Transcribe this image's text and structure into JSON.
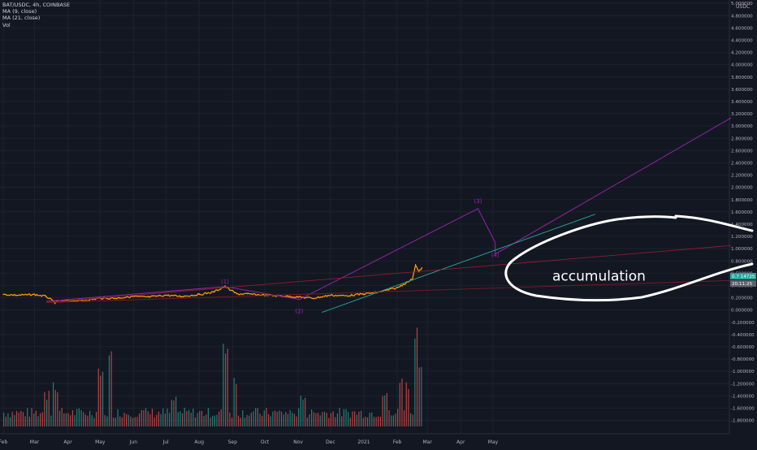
{
  "legend": {
    "symbol_line": "BAT/USDC, 4h, COINBASE",
    "ma9": "MA (9, close)",
    "ma21": "MA (21, close)",
    "vol": "Vol"
  },
  "currency": "USDC",
  "price_tags": {
    "last": "0.7 14725",
    "ma": "20:11:25",
    "label_color_last": "#26a69a",
    "label_color_ma": "#5d606b"
  },
  "annotation_text": "accumulation",
  "wave_labels": [
    "(1)",
    "(2)",
    "(3)",
    "(4)"
  ],
  "chart_data": {
    "type": "line",
    "title": "BAT/USDC, 4h, COINBASE",
    "xlabel": "",
    "ylabel": "USDC",
    "ylim": [
      -1.9,
      5.0
    ],
    "grid": true,
    "x_ticks": [
      "Feb",
      "Mar",
      "Apr",
      "May",
      "Jun",
      "Jul",
      "Aug",
      "Sep",
      "Oct",
      "Nov",
      "Dec",
      "2021",
      "Feb",
      "Mar",
      "Apr",
      "May"
    ],
    "y_ticks": [
      "5.000000",
      "4.800000",
      "4.600000",
      "4.400000",
      "4.200000",
      "4.000000",
      "3.800000",
      "3.600000",
      "3.400000",
      "3.200000",
      "3.000000",
      "2.800000",
      "2.600000",
      "2.400000",
      "2.200000",
      "2.000000",
      "1.800000",
      "1.600000",
      "1.400000",
      "1.200000",
      "1.000000",
      "0.800000",
      "0.600000",
      "0.400000",
      "0.200000",
      "0.000000",
      "-0.200000",
      "-0.400000",
      "-0.600000",
      "-0.800000",
      "-1.000000",
      "-1.200000",
      "-1.400000",
      "-1.600000",
      "-1.800000"
    ],
    "series": [
      {
        "name": "BAT/USDC",
        "color": "#ff9800",
        "x": [
          "2020-02-01",
          "2020-02-15",
          "2020-03-01",
          "2020-03-12",
          "2020-03-20",
          "2020-04-01",
          "2020-04-15",
          "2020-05-01",
          "2020-05-15",
          "2020-06-01",
          "2020-06-15",
          "2020-07-01",
          "2020-07-15",
          "2020-08-01",
          "2020-08-14",
          "2020-08-25",
          "2020-09-05",
          "2020-09-15",
          "2020-10-01",
          "2020-10-15",
          "2020-11-01",
          "2020-11-15",
          "2020-12-01",
          "2020-12-15",
          "2021-01-01",
          "2021-01-15",
          "2021-02-01",
          "2021-02-10",
          "2021-02-15",
          "2021-02-18",
          "2021-02-21",
          "2021-02-24"
        ],
        "values": [
          0.25,
          0.24,
          0.25,
          0.22,
          0.12,
          0.15,
          0.15,
          0.19,
          0.19,
          0.22,
          0.21,
          0.24,
          0.22,
          0.25,
          0.29,
          0.38,
          0.26,
          0.26,
          0.24,
          0.23,
          0.21,
          0.19,
          0.24,
          0.23,
          0.26,
          0.29,
          0.36,
          0.45,
          0.5,
          0.74,
          0.62,
          0.69
        ]
      }
    ],
    "volume": {
      "color_up": "#26a69a",
      "color_down": "#ef5350",
      "spikes": [
        [
          "2020-03-12",
          0.35
        ],
        [
          "2020-03-20",
          0.45
        ],
        [
          "2020-05-01",
          0.55
        ],
        [
          "2020-05-10",
          0.75
        ],
        [
          "2020-07-08",
          0.3
        ],
        [
          "2020-08-25",
          0.95
        ],
        [
          "2020-09-03",
          0.55
        ],
        [
          "2020-11-05",
          0.35
        ],
        [
          "2021-01-20",
          0.35
        ],
        [
          "2021-02-04",
          0.5
        ],
        [
          "2021-02-10",
          0.45
        ],
        [
          "2021-02-18",
          1.0
        ],
        [
          "2021-02-22",
          0.6
        ]
      ]
    },
    "annotations": [
      {
        "label": "(1)",
        "date": "2020-08-25",
        "price": 0.43,
        "color": "#9c27b0"
      },
      {
        "label": "(2)",
        "date": "2020-11-02",
        "price": -0.05,
        "color": "#9c27b0"
      },
      {
        "label": "(3)",
        "date": "2021-04-17",
        "price": 1.74,
        "color": "#9c27b0"
      },
      {
        "label": "(4)",
        "date": "2021-05-03",
        "price": 0.86,
        "color": "#9c27b0"
      },
      {
        "label": "accumulation",
        "date": "2021-05-29",
        "price": 0.48,
        "color": "#ffffff"
      }
    ],
    "trend_lines": [
      {
        "name": "wave-path",
        "color": "#9c27b0",
        "points": [
          [
            "2020-03-12",
            0.14
          ],
          [
            "2020-08-25",
            0.38
          ],
          [
            "2020-11-02",
            0.17
          ],
          [
            "2021-04-17",
            1.65
          ],
          [
            "2021-05-03",
            1.1
          ],
          [
            "2021-05-03",
            0.91
          ],
          [
            "2021-12-08",
            3.13
          ]
        ]
      },
      {
        "name": "support-line",
        "color": "#26a69a",
        "points": [
          [
            "2020-11-23",
            -0.04
          ],
          [
            "2021-08-04",
            1.56
          ]
        ]
      },
      {
        "name": "resistance-line",
        "color": "#8b1e2d",
        "points": [
          [
            "2020-03-12",
            0.12
          ],
          [
            "2021-12-08",
            1.05
          ]
        ]
      },
      {
        "name": "lower-line",
        "color": "#7a1a28",
        "points": [
          [
            "2020-03-12",
            0.12
          ],
          [
            "2021-12-08",
            0.48
          ]
        ]
      }
    ]
  }
}
